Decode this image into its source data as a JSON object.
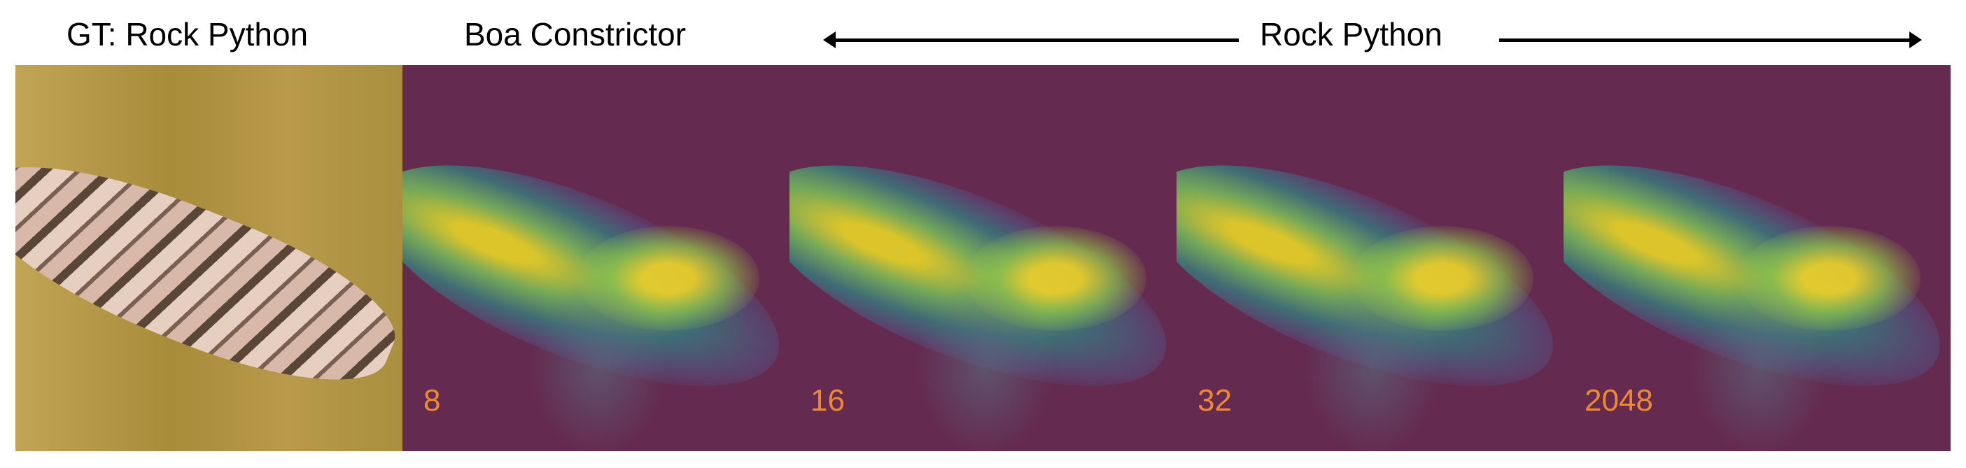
{
  "titles": {
    "ground_truth": "GT: Rock Python",
    "panel1": "Boa Constrictor",
    "span": "Rock Python"
  },
  "panels": [
    {
      "label": "8"
    },
    {
      "label": "16"
    },
    {
      "label": "32"
    },
    {
      "label": "2048"
    }
  ],
  "colors": {
    "label": "#f0882f",
    "heatmap_background": "#652a4f"
  }
}
